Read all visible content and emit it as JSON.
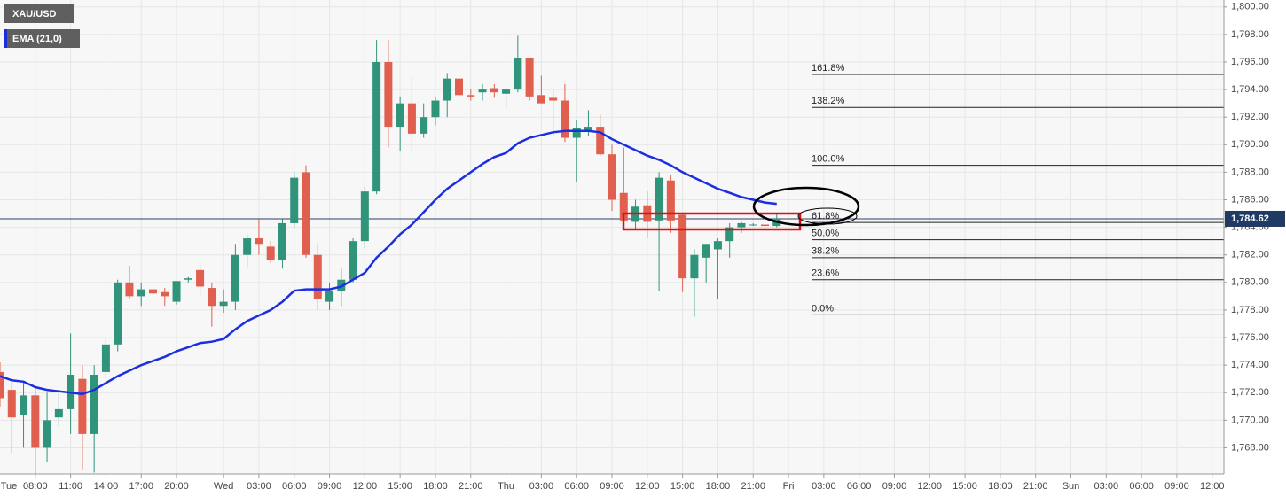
{
  "chart_data": {
    "type": "candlestick",
    "x": [
      5,
      6,
      7,
      8,
      9,
      10,
      11,
      12,
      13,
      14,
      15,
      16,
      17,
      18,
      19,
      20,
      21,
      22,
      23,
      24,
      25,
      26,
      27,
      28,
      29,
      30,
      31,
      32,
      33,
      34,
      35,
      36,
      37,
      38,
      39,
      40,
      41,
      42,
      43,
      44,
      45,
      46,
      47,
      48,
      49,
      50,
      51,
      52,
      53,
      54,
      55,
      56,
      57,
      58,
      59,
      60,
      61,
      62,
      63,
      64,
      65,
      66,
      67,
      68,
      69,
      70,
      71
    ],
    "xlim": [
      5,
      109
    ],
    "xticks": [
      {
        "value": 0,
        "label": "Tue"
      },
      {
        "value": 8,
        "label": "08:00"
      },
      {
        "value": 11,
        "label": "11:00"
      },
      {
        "value": 14,
        "label": "14:00"
      },
      {
        "value": 17,
        "label": "17:00"
      },
      {
        "value": 20,
        "label": "20:00"
      },
      {
        "value": 24,
        "label": "Wed"
      },
      {
        "value": 27,
        "label": "03:00"
      },
      {
        "value": 30,
        "label": "06:00"
      },
      {
        "value": 33,
        "label": "09:00"
      },
      {
        "value": 36,
        "label": "12:00"
      },
      {
        "value": 39,
        "label": "15:00"
      },
      {
        "value": 42,
        "label": "18:00"
      },
      {
        "value": 45,
        "label": "21:00"
      },
      {
        "value": 48,
        "label": "Thu"
      },
      {
        "value": 51,
        "label": "03:00"
      },
      {
        "value": 54,
        "label": "06:00"
      },
      {
        "value": 57,
        "label": "09:00"
      },
      {
        "value": 60,
        "label": "12:00"
      },
      {
        "value": 63,
        "label": "15:00"
      },
      {
        "value": 66,
        "label": "18:00"
      },
      {
        "value": 69,
        "label": "21:00"
      },
      {
        "value": 72,
        "label": "Fri"
      },
      {
        "value": 75,
        "label": "03:00"
      },
      {
        "value": 78,
        "label": "06:00"
      },
      {
        "value": 81,
        "label": "09:00"
      },
      {
        "value": 84,
        "label": "12:00"
      },
      {
        "value": 87,
        "label": "15:00"
      },
      {
        "value": 90,
        "label": "18:00"
      },
      {
        "value": 93,
        "label": "21:00"
      },
      {
        "value": 96,
        "label": "Sun"
      },
      {
        "value": 99,
        "label": "03:00"
      },
      {
        "value": 102,
        "label": "06:00"
      },
      {
        "value": 105,
        "label": "09:00"
      },
      {
        "value": 108,
        "label": "12:00"
      }
    ],
    "ylim": [
      1766.1,
      1800.5
    ],
    "yticks": [
      {
        "value": 1768,
        "label": "1,768.00"
      },
      {
        "value": 1770,
        "label": "1,770.00"
      },
      {
        "value": 1772,
        "label": "1,772.00"
      },
      {
        "value": 1774,
        "label": "1,774.00"
      },
      {
        "value": 1776,
        "label": "1,776.00"
      },
      {
        "value": 1778,
        "label": "1,778.00"
      },
      {
        "value": 1780,
        "label": "1,780.00"
      },
      {
        "value": 1782,
        "label": "1,782.00"
      },
      {
        "value": 1784,
        "label": "1,784.00"
      },
      {
        "value": 1786,
        "label": "1,786.00"
      },
      {
        "value": 1788,
        "label": "1,788.00"
      },
      {
        "value": 1790,
        "label": "1,790.00"
      },
      {
        "value": 1792,
        "label": "1,792.00"
      },
      {
        "value": 1794,
        "label": "1,794.00"
      },
      {
        "value": 1796,
        "label": "1,796.00"
      },
      {
        "value": 1798,
        "label": "1,798.00"
      },
      {
        "value": 1800,
        "label": "1,800.00"
      }
    ],
    "grid": true,
    "series": [
      {
        "name": "XAU/USD",
        "up_color": "#2f9479",
        "down_color": "#e05f4e",
        "open": [
          1773.5,
          1772.2,
          1770.4,
          1771.8,
          1768.0,
          1770.2,
          1770.8,
          1773.0,
          1769.0,
          1773.5,
          1775.5,
          1780.0,
          1779.0,
          1779.5,
          1779.3,
          1778.6,
          1780.2,
          1780.9,
          1779.6,
          1778.3,
          1778.6,
          1782.0,
          1783.2,
          1782.6,
          1781.6,
          1784.3,
          1788.0,
          1782.0,
          1778.6,
          1779.4,
          1780.2,
          1783.0,
          1786.6,
          1796.0,
          1791.3,
          1793.0,
          1790.8,
          1792.0,
          1793.2,
          1794.8,
          1793.6,
          1793.8,
          1794.1,
          1793.7,
          1794.0,
          1796.3,
          1793.6,
          1793.4,
          1793.2,
          1790.5,
          1791.0,
          1791.3,
          1789.3,
          1786.5,
          1784.4,
          1785.6,
          1784.5,
          1787.4,
          1784.9,
          1780.3,
          1781.8,
          1782.4,
          1783.0,
          1784.0,
          1784.2,
          1784.2,
          1784.1
        ],
        "high": [
          1774.2,
          1773.0,
          1772.8,
          1772.3,
          1772.0,
          1772.0,
          1776.3,
          1774.0,
          1774.0,
          1776.0,
          1780.2,
          1781.2,
          1780.0,
          1780.5,
          1779.6,
          1780.0,
          1780.4,
          1781.3,
          1780.0,
          1779.5,
          1782.8,
          1783.5,
          1784.6,
          1783.0,
          1784.6,
          1788.0,
          1788.5,
          1782.8,
          1780.0,
          1781.0,
          1783.2,
          1787.0,
          1797.6,
          1797.6,
          1793.5,
          1795.0,
          1793.0,
          1793.5,
          1795.2,
          1795.0,
          1794.0,
          1794.4,
          1794.4,
          1794.2,
          1797.9,
          1796.3,
          1795.0,
          1794.0,
          1794.4,
          1791.8,
          1792.5,
          1792.2,
          1790.0,
          1789.8,
          1786.0,
          1786.6,
          1788.0,
          1787.8,
          1785.0,
          1782.4,
          1782.8,
          1783.2,
          1784.3,
          1784.4,
          1784.3,
          1784.3,
          1785.0
        ],
        "low": [
          1771.0,
          1767.6,
          1768.0,
          1766.0,
          1767.0,
          1769.6,
          1769.0,
          1766.4,
          1766.2,
          1773.0,
          1775.0,
          1778.8,
          1778.3,
          1778.5,
          1778.3,
          1778.4,
          1780.0,
          1779.0,
          1776.8,
          1777.8,
          1778.0,
          1781.0,
          1782.0,
          1781.4,
          1781.0,
          1784.0,
          1781.8,
          1778.0,
          1778.0,
          1778.3,
          1780.0,
          1782.5,
          1786.4,
          1789.8,
          1789.5,
          1789.4,
          1790.5,
          1791.4,
          1792.0,
          1793.2,
          1793.2,
          1793.2,
          1793.4,
          1792.6,
          1793.8,
          1793.2,
          1793.0,
          1790.6,
          1790.2,
          1787.3,
          1790.6,
          1789.2,
          1785.2,
          1783.8,
          1783.8,
          1783.2,
          1779.4,
          1783.6,
          1779.3,
          1777.5,
          1780.0,
          1778.8,
          1781.8,
          1783.6,
          1784.1,
          1783.8,
          1784.0
        ],
        "close": [
          1771.6,
          1770.2,
          1771.8,
          1768.0,
          1770.0,
          1770.8,
          1773.3,
          1769.0,
          1773.3,
          1775.5,
          1780.0,
          1779.0,
          1779.5,
          1779.2,
          1779.0,
          1780.1,
          1780.3,
          1779.7,
          1778.3,
          1778.6,
          1782.0,
          1783.2,
          1782.8,
          1781.6,
          1784.3,
          1787.6,
          1782.0,
          1778.8,
          1779.4,
          1780.2,
          1783.0,
          1786.6,
          1796.0,
          1791.3,
          1793.0,
          1790.8,
          1792.0,
          1793.2,
          1794.8,
          1793.6,
          1793.5,
          1794.0,
          1793.8,
          1794.0,
          1796.3,
          1793.5,
          1793.0,
          1793.2,
          1790.5,
          1791.2,
          1791.3,
          1789.3,
          1786.0,
          1784.5,
          1785.5,
          1784.4,
          1787.6,
          1784.5,
          1780.3,
          1782.0,
          1782.8,
          1783.0,
          1784.0,
          1784.3,
          1784.2,
          1784.1,
          1784.62
        ]
      },
      {
        "name": "EMA (21,0)",
        "color": "#1b2fe0",
        "values": [
          1773.2,
          1772.9,
          1772.8,
          1772.4,
          1772.2,
          1772.1,
          1772.0,
          1771.9,
          1772.2,
          1772.7,
          1773.2,
          1773.6,
          1774.0,
          1774.3,
          1774.6,
          1775.0,
          1775.3,
          1775.6,
          1775.7,
          1775.9,
          1776.6,
          1777.2,
          1777.6,
          1778.0,
          1778.6,
          1779.4,
          1779.5,
          1779.5,
          1779.5,
          1779.7,
          1780.2,
          1780.7,
          1781.8,
          1782.6,
          1783.5,
          1784.2,
          1785.1,
          1786.0,
          1786.8,
          1787.4,
          1788.0,
          1788.6,
          1789.1,
          1789.4,
          1790.1,
          1790.5,
          1790.7,
          1790.9,
          1791.0,
          1791.0,
          1791.0,
          1790.9,
          1790.4,
          1790.0,
          1789.6,
          1789.2,
          1788.9,
          1788.5,
          1788.0,
          1787.6,
          1787.2,
          1786.8,
          1786.5,
          1786.2,
          1786.0,
          1785.8,
          1785.7
        ]
      }
    ],
    "last_price": {
      "value": 1784.62,
      "label": "1,784.62"
    },
    "fib_levels": [
      {
        "label": "161.8%",
        "value": 1795.1
      },
      {
        "label": "138.2%",
        "value": 1792.7
      },
      {
        "label": "100.0%",
        "value": 1788.5
      },
      {
        "label": "61.8%",
        "value": 1784.35
      },
      {
        "label": "50.0%",
        "value": 1783.1
      },
      {
        "label": "38.2%",
        "value": 1781.8
      },
      {
        "label": "23.6%",
        "value": 1780.2
      },
      {
        "label": "0.0%",
        "value": 1777.65
      }
    ]
  }
}
